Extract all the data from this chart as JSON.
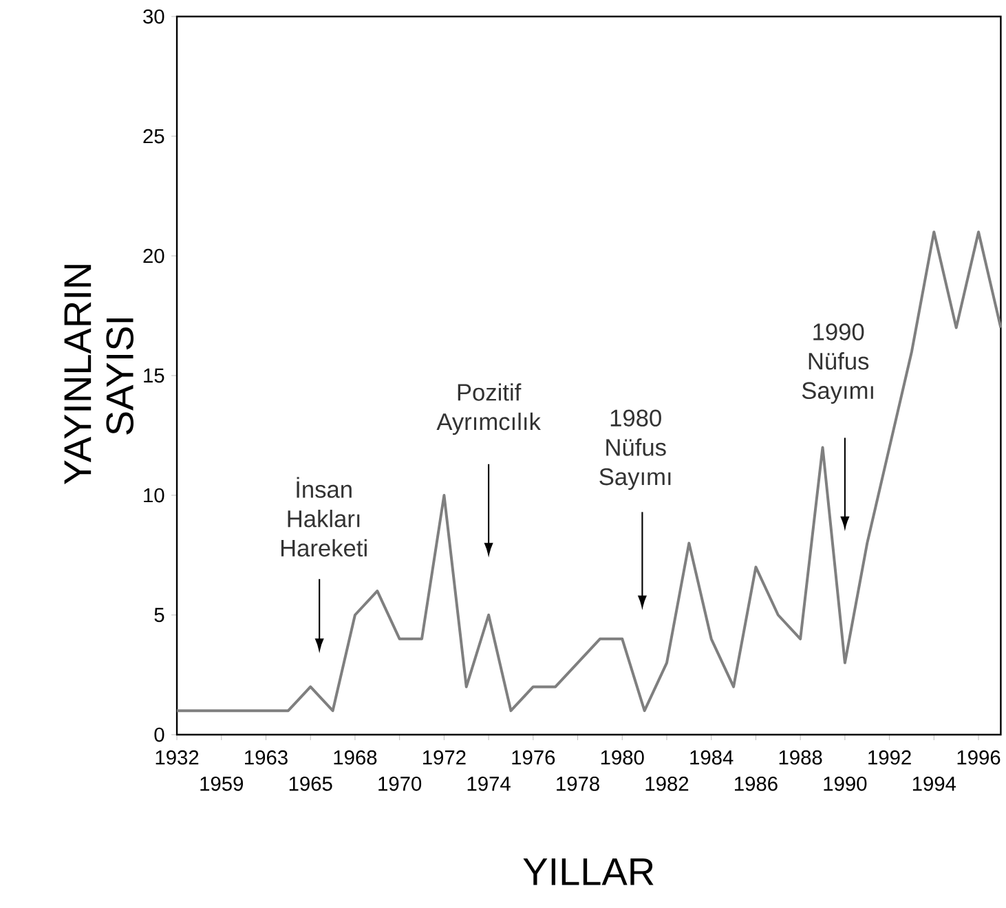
{
  "chart_data": {
    "type": "line",
    "xlabel": "YILLAR",
    "ylabel": "YAYINLARIN SAYISI",
    "categories": [
      "1932",
      null,
      "1959",
      null,
      "1963",
      null,
      "1965",
      null,
      "1968",
      null,
      "1970",
      null,
      "1972",
      null,
      "1974",
      null,
      "1976",
      null,
      "1978",
      null,
      "1980",
      null,
      "1982",
      null,
      "1984",
      null,
      "1986",
      null,
      "1988",
      null,
      "1990",
      null,
      "1992",
      null,
      "1994",
      null,
      "1996",
      null
    ],
    "series": [
      {
        "color": "#7f7f7f",
        "values": [
          1,
          1,
          1,
          1,
          1,
          1,
          2,
          1,
          5,
          6,
          4,
          4,
          10,
          2,
          5,
          1,
          2,
          2,
          3,
          4,
          4,
          1,
          3,
          8,
          4,
          2,
          7,
          5,
          4,
          12,
          3,
          8,
          12,
          16,
          21,
          17,
          21,
          17
        ]
      }
    ],
    "ylim": [
      0,
      30
    ],
    "yticks": [
      0,
      5,
      10,
      15,
      20,
      25,
      30
    ],
    "annotations": [
      "İnsan Hakları Hareketi",
      "Pozitif Ayrımcılık",
      "1980 Nüfus Sayımı",
      "1990 Nüfus Sayımı"
    ],
    "grid": false,
    "marker": "none",
    "line_style": "solid"
  }
}
